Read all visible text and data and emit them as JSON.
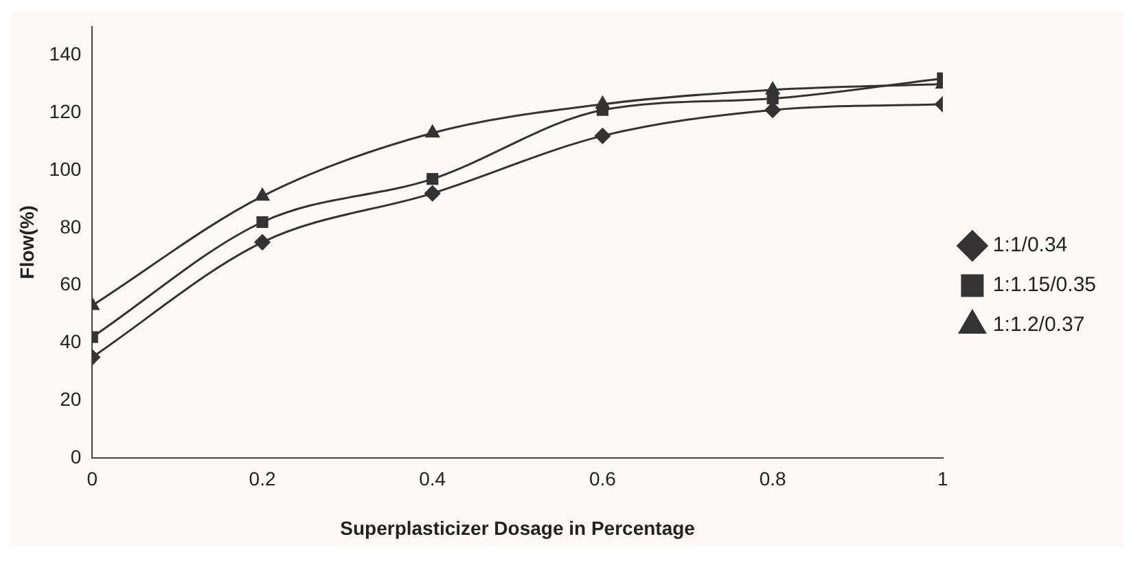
{
  "chart_data": {
    "type": "line",
    "xlabel": "Superplasticizer Dosage in Percentage",
    "ylabel": "Flow(%)",
    "x": [
      0,
      0.2,
      0.4,
      0.6,
      0.8,
      1
    ],
    "series": [
      {
        "name": "1:1/0.34",
        "color": "#333333",
        "marker": "diamond",
        "values": [
          35,
          75,
          92,
          112,
          121,
          123
        ]
      },
      {
        "name": "1:1.15/0.35",
        "color": "#333333",
        "marker": "square",
        "values": [
          42,
          82,
          97,
          121,
          125,
          132
        ]
      },
      {
        "name": "1:1.2/0.37",
        "color": "#333333",
        "marker": "triangle",
        "values": [
          53,
          91,
          113,
          123,
          128,
          130
        ]
      }
    ],
    "xlim": [
      0,
      1
    ],
    "xticks": [
      0,
      0.2,
      0.4,
      0.6,
      0.8,
      1
    ],
    "ylim": [
      0,
      150
    ],
    "yticks": [
      0,
      20,
      40,
      60,
      80,
      100,
      120,
      140
    ],
    "grid": false,
    "legend": "right"
  }
}
